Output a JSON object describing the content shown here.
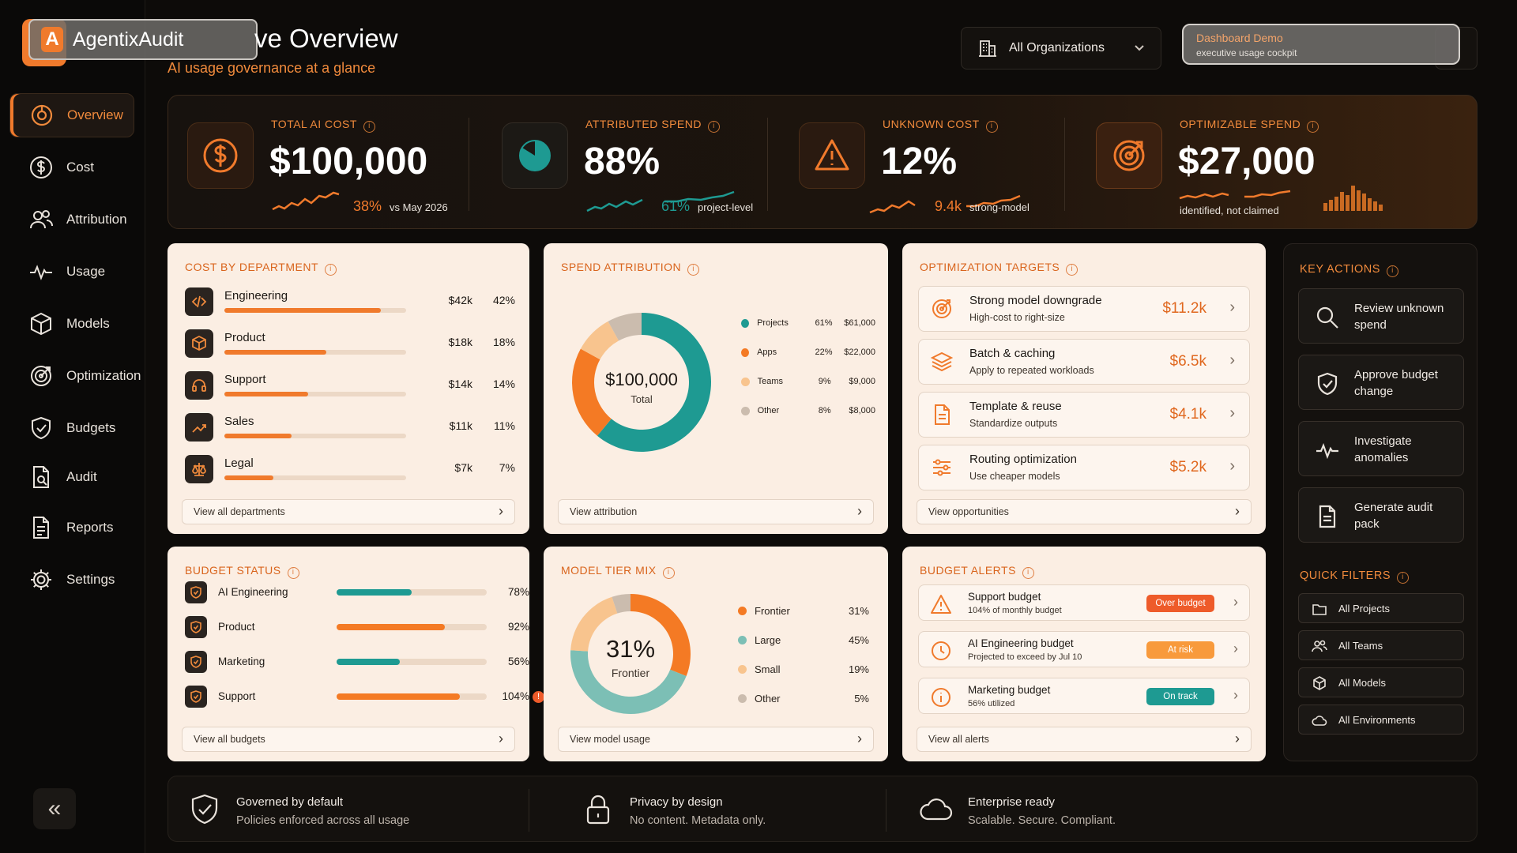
{
  "brand": {
    "name": "AgentixAudit",
    "logo_letter": "A"
  },
  "header": {
    "title": "ve Overview",
    "subtitle": "AI usage governance at a glance",
    "org_select": "All Organizations",
    "demo_title": "Dashboard Demo",
    "demo_sub": "executive usage cockpit"
  },
  "nav": [
    {
      "label": "Overview",
      "icon": "overview-icon",
      "active": true
    },
    {
      "label": "Cost",
      "icon": "dollar-icon"
    },
    {
      "label": "Attribution",
      "icon": "users-icon"
    },
    {
      "label": "Usage",
      "icon": "activity-icon"
    },
    {
      "label": "Models",
      "icon": "cube-icon"
    },
    {
      "label": "Optimization",
      "icon": "target-icon"
    },
    {
      "label": "Budgets",
      "icon": "shield-icon"
    },
    {
      "label": "Audit",
      "icon": "audit-doc-icon"
    },
    {
      "label": "Reports",
      "icon": "report-icon"
    },
    {
      "label": "Settings",
      "icon": "gear-icon"
    }
  ],
  "kpis": [
    {
      "label": "TOTAL AI COST",
      "value": "$100,000",
      "delta": "38%",
      "note": "vs May 2026",
      "icon": "dollar-icon"
    },
    {
      "label": "ATTRIBUTED SPEND",
      "value": "88%",
      "delta": "61%",
      "note": "project-level",
      "icon": "pie-icon"
    },
    {
      "label": "UNKNOWN COST",
      "value": "12%",
      "delta": "9.4k",
      "note": "strong-model",
      "icon": "warning-icon"
    },
    {
      "label": "OPTIMIZABLE SPEND",
      "value": "$27,000",
      "delta": "",
      "note": "identified, not claimed",
      "icon": "target-icon"
    }
  ],
  "cost_by_department": {
    "title": "COST BY DEPARTMENT",
    "rows": [
      {
        "name": "Engineering",
        "amount": "$42k",
        "pct": "42%",
        "share": 0.86,
        "icon": "code-icon"
      },
      {
        "name": "Product",
        "amount": "$18k",
        "pct": "18%",
        "share": 0.56,
        "icon": "cube-icon"
      },
      {
        "name": "Support",
        "amount": "$14k",
        "pct": "14%",
        "share": 0.46,
        "icon": "headset-icon"
      },
      {
        "name": "Sales",
        "amount": "$11k",
        "pct": "11%",
        "share": 0.37,
        "icon": "trend-icon"
      },
      {
        "name": "Legal",
        "amount": "$7k",
        "pct": "7%",
        "share": 0.27,
        "icon": "scale-icon"
      }
    ],
    "footer": "View all departments"
  },
  "spend_attribution": {
    "title": "SPEND ATTRIBUTION",
    "center_value": "$100,000",
    "center_label": "Total",
    "segments": [
      {
        "name": "Projects",
        "pct": "61%",
        "amount": "$61,000",
        "value": 61,
        "color": "#1e9a92"
      },
      {
        "name": "Apps",
        "pct": "22%",
        "amount": "$22,000",
        "value": 22,
        "color": "#f47a24"
      },
      {
        "name": "Teams",
        "pct": "9%",
        "amount": "$9,000",
        "value": 9,
        "color": "#f8c48e"
      },
      {
        "name": "Other",
        "pct": "8%",
        "amount": "$8,000",
        "value": 8,
        "color": "#cbbcae"
      }
    ],
    "footer": "View attribution"
  },
  "optimization_targets": {
    "title": "OPTIMIZATION TARGETS",
    "rows": [
      {
        "name": "Strong model downgrade",
        "sub": "High-cost to right-size",
        "amount": "$11.2k",
        "icon": "target-icon"
      },
      {
        "name": "Batch & caching",
        "sub": "Apply to repeated workloads",
        "amount": "$6.5k",
        "icon": "layers-icon"
      },
      {
        "name": "Template & reuse",
        "sub": "Standardize outputs",
        "amount": "$4.1k",
        "icon": "document-icon"
      },
      {
        "name": "Routing optimization",
        "sub": "Use cheaper models",
        "amount": "$5.2k",
        "icon": "sliders-icon"
      }
    ],
    "footer": "View opportunities"
  },
  "budget_status": {
    "title": "BUDGET STATUS",
    "rows": [
      {
        "name": "AI Engineering",
        "pct": "78%",
        "fill": 0.5,
        "color": "#1e9a92"
      },
      {
        "name": "Product",
        "pct": "92%",
        "fill": 0.72,
        "color": "#f47a24"
      },
      {
        "name": "Marketing",
        "pct": "56%",
        "fill": 0.42,
        "color": "#1e9a92"
      },
      {
        "name": "Support",
        "pct": "104%",
        "fill": 0.82,
        "color": "#f47a24",
        "warning": "!"
      }
    ],
    "footer": "View all budgets"
  },
  "model_tier_mix": {
    "title": "MODEL TIER MIX",
    "center_value": "31%",
    "center_label": "Frontier",
    "segments": [
      {
        "name": "Frontier",
        "pct": "31%",
        "value": 31,
        "color": "#f47a24"
      },
      {
        "name": "Large",
        "pct": "45%",
        "value": 45,
        "color": "#7cbfb5"
      },
      {
        "name": "Small",
        "pct": "19%",
        "value": 19,
        "color": "#f8c48e"
      },
      {
        "name": "Other",
        "pct": "5%",
        "value": 5,
        "color": "#cbbcae"
      }
    ],
    "footer": "View model usage"
  },
  "budget_alerts": {
    "title": "BUDGET ALERTS",
    "rows": [
      {
        "name": "Support budget",
        "sub": "104% of monthly budget",
        "badge": "Over budget",
        "badge_color": "#ee5b2a",
        "icon": "warning-icon"
      },
      {
        "name": "AI Engineering budget",
        "sub": "Projected to exceed by Jul 10",
        "badge": "At risk",
        "badge_color": "#f89a3c",
        "icon": "clock-icon"
      },
      {
        "name": "Marketing budget",
        "sub": "56% utilized",
        "badge": "On track",
        "badge_color": "#1e9a92",
        "icon": "info-icon"
      }
    ],
    "footer": "View all alerts"
  },
  "key_actions": {
    "title": "KEY ACTIONS",
    "items": [
      {
        "label": "Review unknown spend",
        "icon": "search-icon"
      },
      {
        "label": "Approve budget change",
        "icon": "shield-check-icon"
      },
      {
        "label": "Investigate anomalies",
        "icon": "activity-icon"
      },
      {
        "label": "Generate audit pack",
        "icon": "document-icon"
      }
    ]
  },
  "quick_filters": {
    "title": "QUICK FILTERS",
    "items": [
      {
        "label": "All Projects",
        "icon": "folder-icon"
      },
      {
        "label": "All Teams",
        "icon": "users-icon"
      },
      {
        "label": "All Models",
        "icon": "cube-icon"
      },
      {
        "label": "All Environments",
        "icon": "cloud-icon"
      }
    ]
  },
  "footer_bar": [
    {
      "title": "Governed by default",
      "sub": "Policies enforced across all usage",
      "icon": "shield-check-icon"
    },
    {
      "title": "Privacy by design",
      "sub": "No content. Metadata only.",
      "icon": "lock-icon"
    },
    {
      "title": "Enterprise ready",
      "sub": "Scalable. Secure. Compliant.",
      "icon": "cloud-icon"
    }
  ],
  "colors": {
    "accent": "#f07a2c",
    "teal": "#1e9a92",
    "card_bg": "#fbeee3",
    "page_bg": "#0d0b09"
  }
}
